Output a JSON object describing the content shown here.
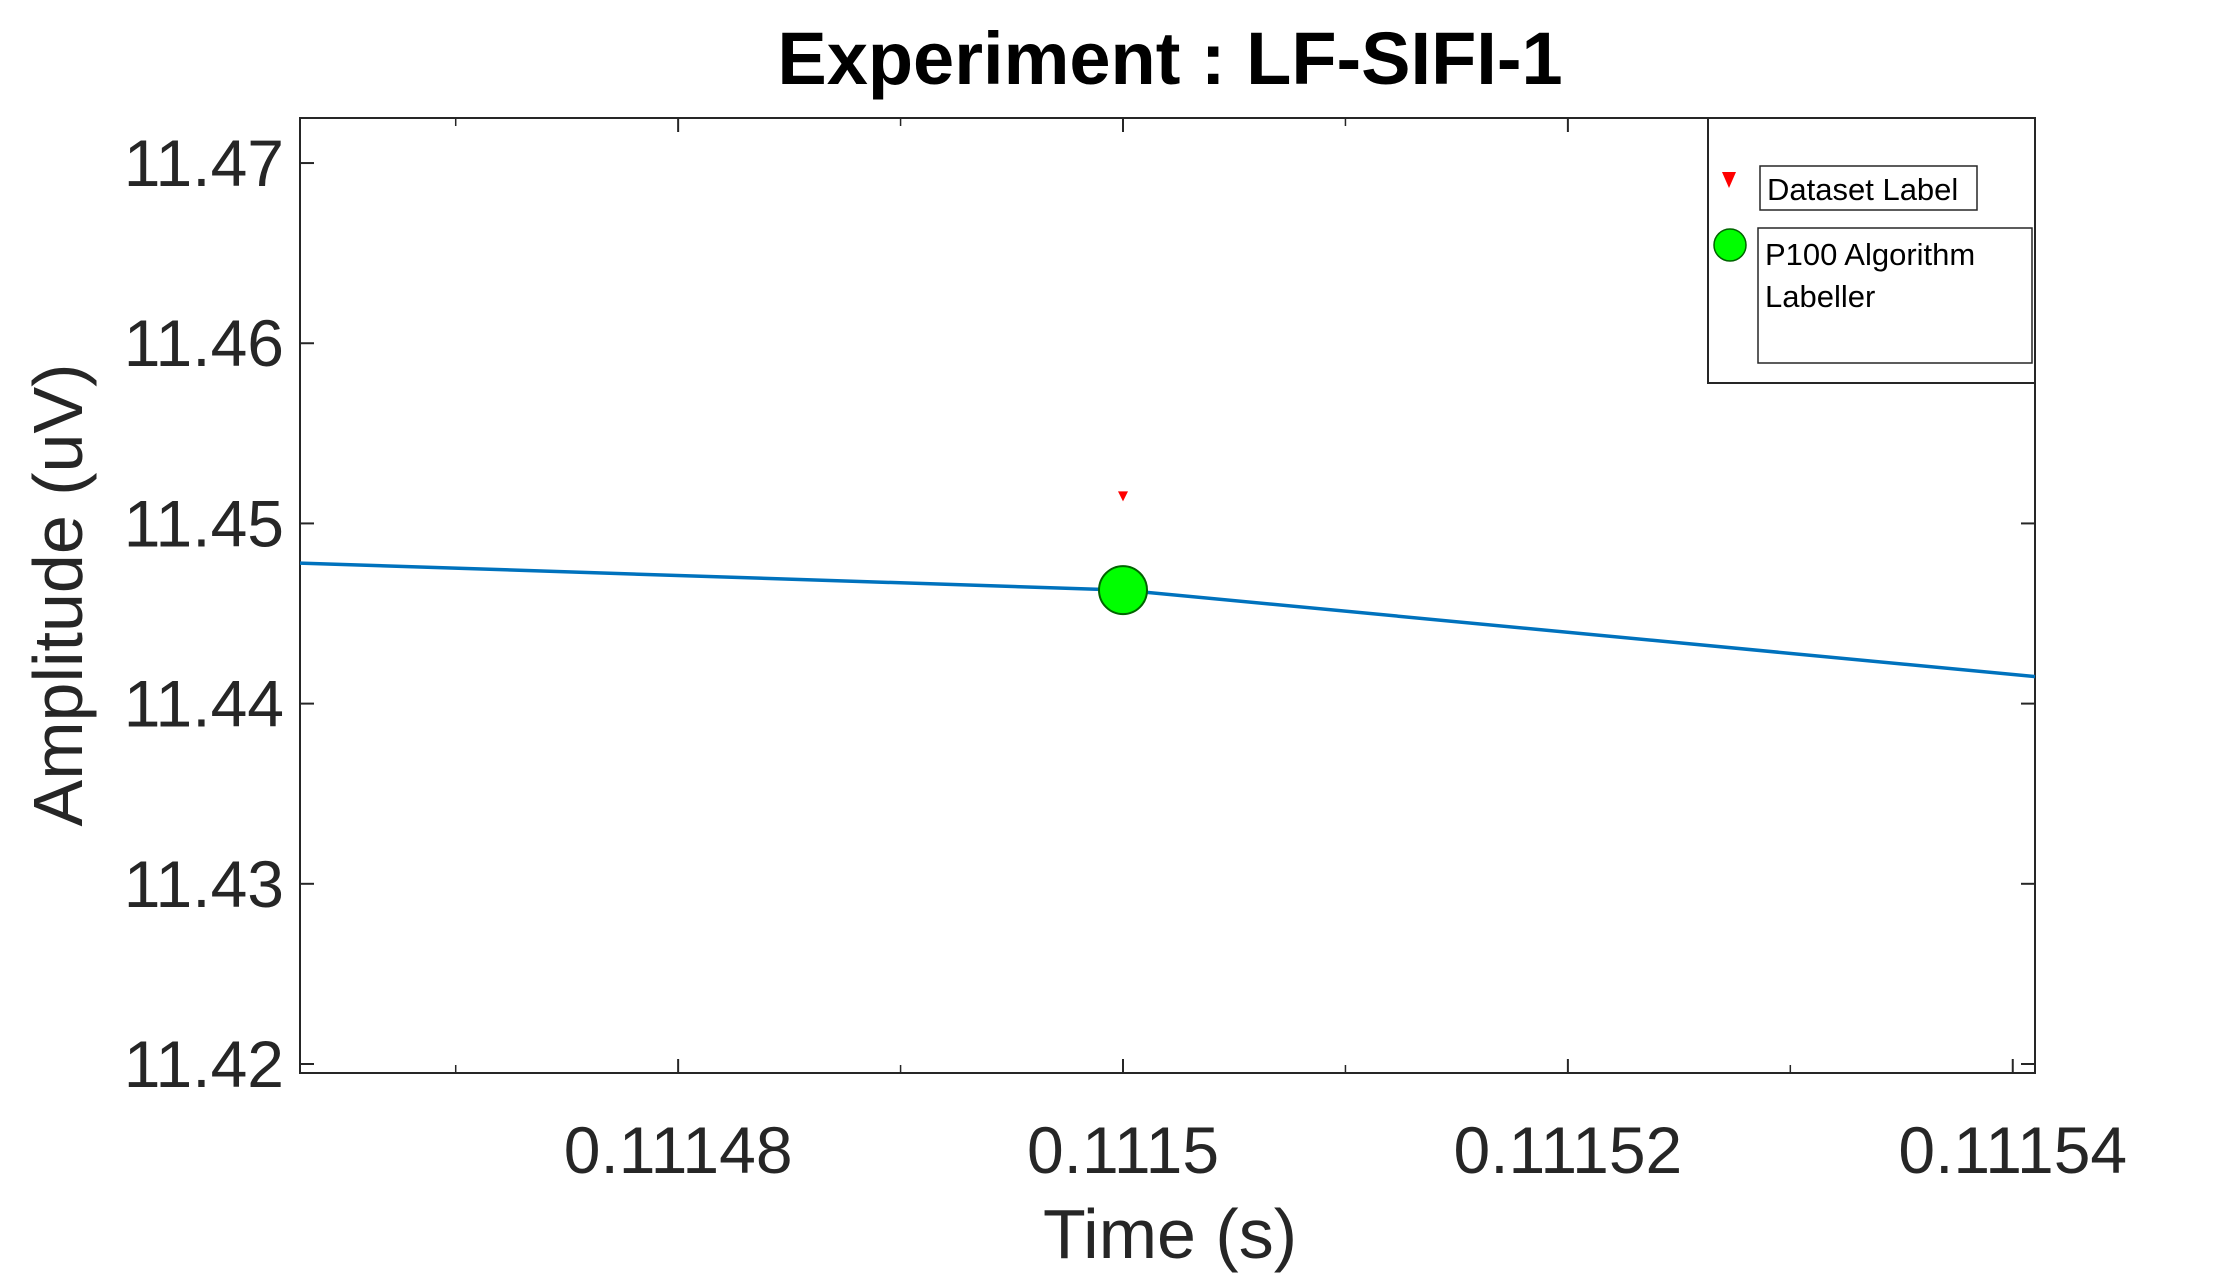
{
  "chart_data": {
    "type": "line",
    "title": "Experiment : LF-SIFI-1",
    "xlabel": "Time (s)",
    "ylabel": "Amplitude (uV)",
    "xlim": [
      0.111463,
      0.111541
    ],
    "ylim": [
      11.4195,
      11.4725
    ],
    "xticks": [
      0.11148,
      0.1115,
      0.11152,
      0.11154
    ],
    "xtick_labels": [
      "0.11148",
      "0.1115",
      "0.11152",
      "0.11154"
    ],
    "xminor": [
      0.11147,
      0.11149,
      0.11151,
      0.11153
    ],
    "yticks": [
      11.42,
      11.43,
      11.44,
      11.45,
      11.46,
      11.47
    ],
    "ytick_labels": [
      "11.42",
      "11.43",
      "11.44",
      "11.45",
      "11.46",
      "11.47"
    ],
    "grid": false,
    "legend_position": "top-right",
    "series": [
      {
        "kind": "line",
        "color": "#0072BD",
        "x": [
          0.111463,
          0.1115,
          0.111541
        ],
        "y": [
          11.4478,
          11.4463,
          11.4415
        ]
      },
      {
        "name": "Dataset Label",
        "kind": "marker",
        "marker": "triangle-down",
        "color": "#FF0000",
        "x": [
          0.1115
        ],
        "y": [
          11.4515
        ]
      },
      {
        "name": "P100 Algorithm Labeller",
        "kind": "marker",
        "marker": "circle",
        "color": "#00FF00",
        "x": [
          0.1115
        ],
        "y": [
          11.4463
        ]
      }
    ],
    "legend": [
      {
        "label": "Dataset Label",
        "icon": "red-triangle-down-icon"
      },
      {
        "label_lines": [
          "P100 Algorithm",
          "Labeller"
        ],
        "icon": "green-circle-icon"
      }
    ]
  }
}
